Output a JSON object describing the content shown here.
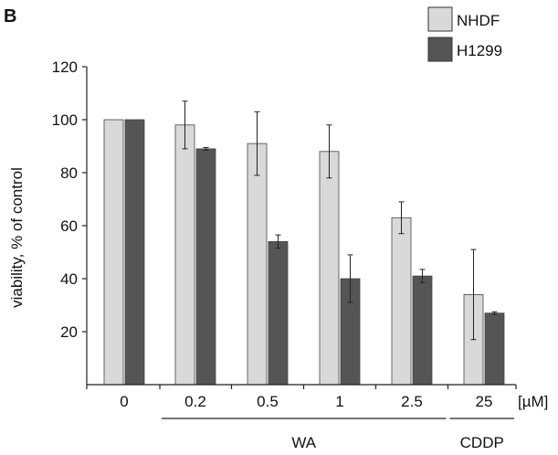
{
  "panel_label": "B",
  "chart_data": {
    "type": "bar",
    "categories": [
      "0",
      "0.2",
      "0.5",
      "1",
      "2.5",
      "25"
    ],
    "unit_label": "[µM]",
    "series": [
      {
        "name": "NHDF",
        "color": "#d9d9d9",
        "values": [
          100,
          98,
          91,
          88,
          63,
          34
        ],
        "errors": [
          0,
          9,
          12,
          10,
          6,
          17
        ]
      },
      {
        "name": "H1299",
        "color": "#555555",
        "values": [
          100,
          89,
          54,
          40,
          41,
          27
        ],
        "errors": [
          0,
          0.5,
          2.5,
          9,
          2.5,
          0.5
        ]
      }
    ],
    "ylabel": "viability, % of control",
    "ylim": [
      0,
      120
    ],
    "yticks": [
      20,
      40,
      60,
      80,
      100,
      120
    ],
    "grid": false,
    "legend_position": "top-right",
    "groups": [
      {
        "label": "WA",
        "categories": [
          "0.2",
          "0.5",
          "1",
          "2.5"
        ]
      },
      {
        "label": "CDDP",
        "categories": [
          "25"
        ]
      }
    ]
  }
}
